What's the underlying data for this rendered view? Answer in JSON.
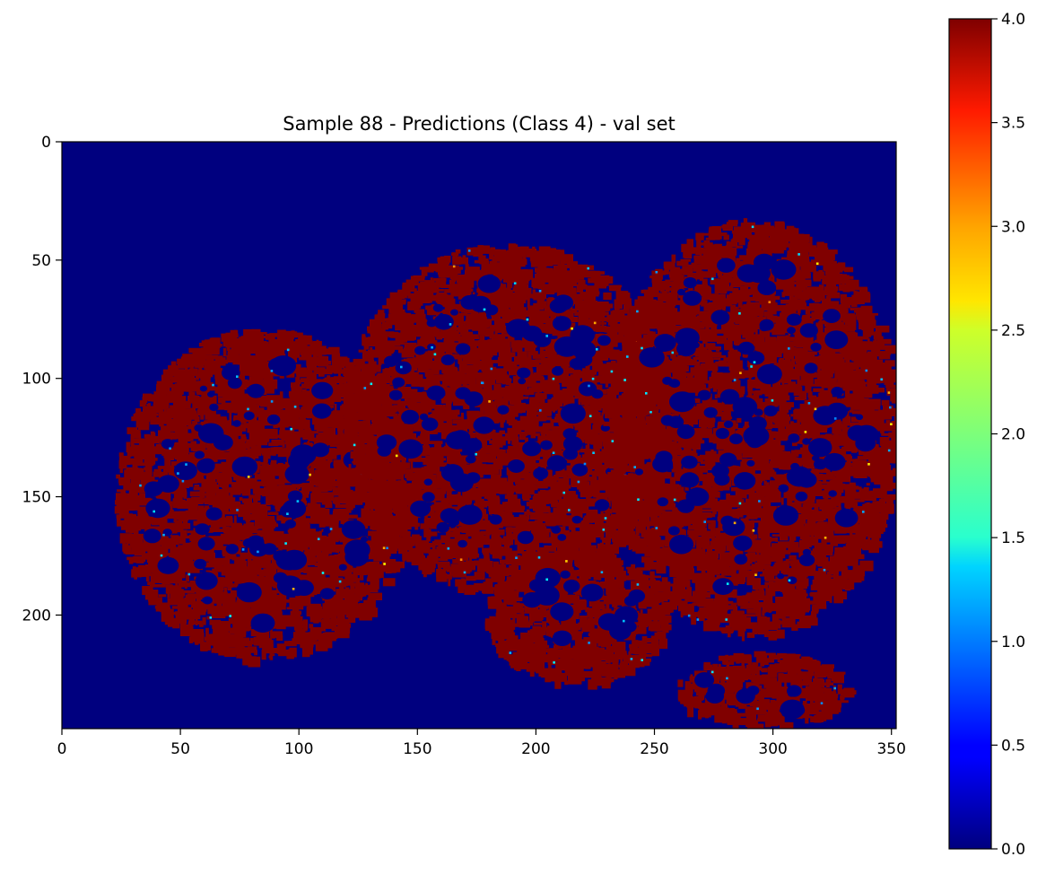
{
  "chart_data": {
    "type": "heatmap",
    "title": "Sample 88 - Predictions (Class 4) - val set",
    "xlabel": "",
    "ylabel": "",
    "grid": false,
    "colormap": "jet",
    "image_shape": [
      248,
      352
    ],
    "xlim": [
      0,
      352
    ],
    "ylim": [
      248,
      0
    ],
    "x_ticks": [
      0,
      50,
      100,
      150,
      200,
      250,
      300,
      350
    ],
    "y_ticks": [
      0,
      50,
      100,
      150,
      200
    ],
    "colorbar": {
      "range": [
        0.0,
        4.0
      ],
      "ticks": [
        0.0,
        0.5,
        1.0,
        1.5,
        2.0,
        2.5,
        3.0,
        3.5,
        4.0
      ],
      "tick_labels": [
        "0.0",
        "0.5",
        "1.0",
        "1.5",
        "2.0",
        "2.5",
        "3.0",
        "3.5",
        "4.0"
      ]
    },
    "background_value": 0,
    "predominant_prediction_value": 4,
    "tissue_regions": [
      {
        "name": "left-fragment",
        "x_range": [
          22,
          145
        ],
        "y_range": [
          78,
          218
        ],
        "value": 4
      },
      {
        "name": "center-upper-fragment",
        "x_range": [
          118,
          255
        ],
        "y_range": [
          42,
          190
        ],
        "value": 4
      },
      {
        "name": "right-fragment",
        "x_range": [
          228,
          352
        ],
        "y_range": [
          32,
          208
        ],
        "value": 4
      },
      {
        "name": "bottom-center-fragment",
        "x_range": [
          178,
          255
        ],
        "y_range": [
          172,
          228
        ],
        "value": 4
      },
      {
        "name": "bottom-right-fragment",
        "x_range": [
          258,
          330
        ],
        "y_range": [
          215,
          246
        ],
        "value": 4
      }
    ]
  }
}
